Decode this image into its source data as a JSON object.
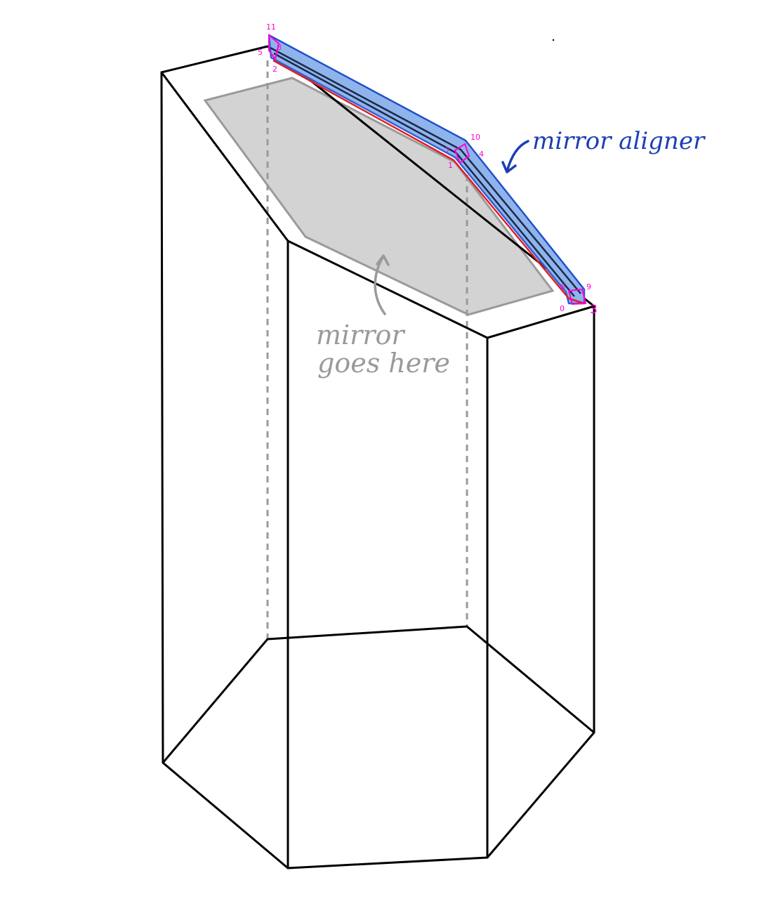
{
  "annotations": {
    "aligner_label": "mirror aligner",
    "mirror_label_line1": "mirror",
    "mirror_label_line2": "goes here"
  },
  "vertex_labels": {
    "v11": "11",
    "v5": "5",
    "v8": "8",
    "v2": "2",
    "v10": "10",
    "v7": "7",
    "v4": "4",
    "v1": "1",
    "v6": "6",
    "v9": "9",
    "v0": "0",
    "v3": "3"
  },
  "colors": {
    "outline": "#000000",
    "hidden_edges": "#9a9a9a",
    "mirror_fill": "#d3d3d3",
    "aligner_fill": "#8fb4ec",
    "aligner_outline": "#2f5fd6",
    "aligner_red_edge": "#e11f1f",
    "vertex_markers": "#ff00d4",
    "aligner_note": "#1c3fb4",
    "mirror_note": "#9a9a9a"
  }
}
